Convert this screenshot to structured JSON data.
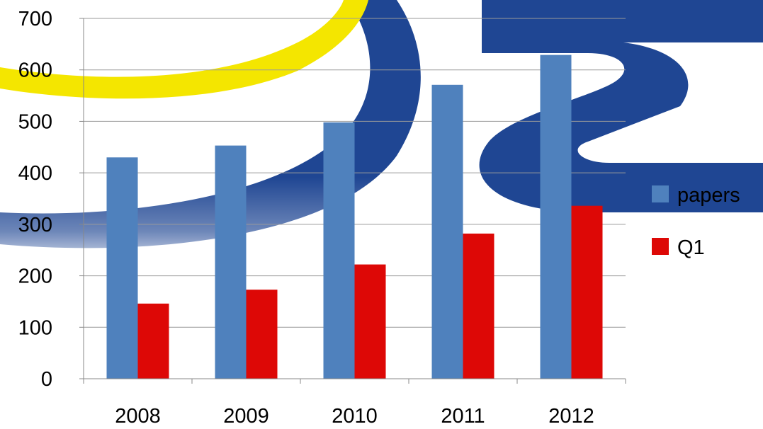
{
  "chart_data": {
    "type": "bar",
    "categories": [
      "2008",
      "2009",
      "2010",
      "2011",
      "2012"
    ],
    "series": [
      {
        "name": "papers",
        "values": [
          430,
          453,
          498,
          571,
          629
        ],
        "color": "#4f81bd"
      },
      {
        "name": "Q1",
        "values": [
          146,
          173,
          222,
          282,
          336
        ],
        "color": "#dd0806"
      }
    ],
    "ylim": [
      0,
      700
    ],
    "yticks": [
      0,
      100,
      200,
      300,
      400,
      500,
      600,
      700
    ],
    "grid": true,
    "legend_position": "right",
    "title": "",
    "xlabel": "",
    "ylabel": ""
  },
  "background": {
    "logo_colors": {
      "blue": "#1f4693",
      "yellow": "#f4e600"
    }
  }
}
